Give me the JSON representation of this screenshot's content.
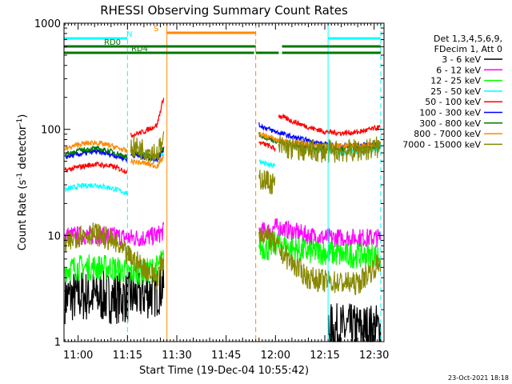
{
  "chart_data": {
    "type": "line",
    "title": "RHESSI Observing Summary Count Rates",
    "xlabel": "Start Time (19-Dec-04 10:55:42)",
    "ylabel": "Count Rate (s⁻¹ detector⁻¹)",
    "ylabel_parts": [
      "Count Rate (s",
      "-1",
      " detector",
      "-1",
      ")"
    ],
    "yscale": "log",
    "xlim": [
      "10:55:42",
      "12:33:00"
    ],
    "ylim": [
      1,
      1000
    ],
    "x_ticks": [
      "11:00",
      "11:15",
      "11:30",
      "11:45",
      "12:00",
      "12:15",
      "12:30"
    ],
    "y_ticks": [
      "1",
      "10",
      "100",
      "1000"
    ],
    "legend_header": [
      "Det 1,3,4,5,6,9,",
      "FDecim 1, Att 0"
    ],
    "legend_position": "right",
    "footer_date": "23-Oct-2021 18:18",
    "flag_bars": [
      {
        "label": "N",
        "color": "#00ffff",
        "segments": [
          [
            "10:55:42",
            "11:15:00"
          ],
          [
            "12:16:00",
            "12:32:00"
          ]
        ]
      },
      {
        "label": "S",
        "color": "#ff8800",
        "segments": [
          [
            "11:27:00",
            "11:54:00"
          ]
        ]
      },
      {
        "label": "RD0",
        "color": "#007700",
        "segments": [
          [
            "10:55:42",
            "11:54:00"
          ],
          [
            "12:02:00",
            "12:32:00"
          ]
        ]
      },
      {
        "label": "RD4",
        "color": "#007700",
        "segments": [
          [
            "10:55:42",
            "11:15:00"
          ],
          [
            "11:15:00",
            "11:53:30"
          ],
          [
            "11:54:00",
            "12:01:00"
          ],
          [
            "12:02:00",
            "12:32:00"
          ]
        ]
      }
    ],
    "vlines": [
      {
        "time": "10:55:42",
        "color": "#00ffff",
        "style": "solid"
      },
      {
        "time": "11:15:00",
        "color": "#00ffff",
        "style": "dashed"
      },
      {
        "time": "11:27:00",
        "color": "#ff8800",
        "style": "solid"
      },
      {
        "time": "11:54:00",
        "color": "#ff8800",
        "style": "dashed"
      },
      {
        "time": "12:16:00",
        "color": "#00ffff",
        "style": "solid"
      },
      {
        "time": "12:32:00",
        "color": "#00ffff",
        "style": "dashed"
      }
    ],
    "series": [
      {
        "name": "3 - 6 keV",
        "color": "#000000",
        "noise": 0.5,
        "segments": [
          [
            [
              "10:56",
              "2.6"
            ],
            [
              "11:00",
              "2.7"
            ],
            [
              "11:05",
              "2.7"
            ],
            [
              "11:10",
              "2.6"
            ],
            [
              "11:15",
              "2.6"
            ],
            [
              "11:20",
              "2.8"
            ],
            [
              "11:24",
              "3.0"
            ],
            [
              "11:26",
              "3.5"
            ]
          ],
          [
            [
              "12:16",
              "1.3"
            ],
            [
              "12:20",
              "1.3"
            ],
            [
              "12:25",
              "1.3"
            ],
            [
              "12:30",
              "1.3"
            ],
            [
              "12:32",
              "1.3"
            ]
          ]
        ]
      },
      {
        "name": "6 - 12 keV",
        "color": "#ff00ff",
        "noise": 0.18,
        "segments": [
          [
            [
              "10:56",
              "10"
            ],
            [
              "11:00",
              "10"
            ],
            [
              "11:05",
              "10"
            ],
            [
              "11:10",
              "10"
            ],
            [
              "11:15",
              "9.5"
            ],
            [
              "11:20",
              "9.5"
            ],
            [
              "11:24",
              "10"
            ],
            [
              "11:26",
              "11"
            ]
          ],
          [
            [
              "11:55",
              "11"
            ],
            [
              "11:58",
              "11"
            ],
            [
              "12:00",
              "12"
            ],
            [
              "12:05",
              "11"
            ],
            [
              "12:10",
              "10"
            ],
            [
              "12:15",
              "9.5"
            ],
            [
              "12:20",
              "9.5"
            ],
            [
              "12:25",
              "9.5"
            ],
            [
              "12:32",
              "9.5"
            ]
          ]
        ]
      },
      {
        "name": "12 - 25 keV",
        "color": "#00ff00",
        "noise": 0.25,
        "segments": [
          [
            [
              "10:56",
              "4.8"
            ],
            [
              "11:00",
              "5"
            ],
            [
              "11:05",
              "5"
            ],
            [
              "11:10",
              "5"
            ],
            [
              "11:15",
              "4.5"
            ],
            [
              "11:20",
              "4.5"
            ],
            [
              "11:24",
              "5"
            ],
            [
              "11:26",
              "6"
            ]
          ],
          [
            [
              "11:55",
              "8"
            ],
            [
              "11:58",
              "7.5"
            ],
            [
              "12:00",
              "8.5"
            ],
            [
              "12:05",
              "7.5"
            ],
            [
              "12:10",
              "7"
            ],
            [
              "12:15",
              "7"
            ],
            [
              "12:20",
              "6.5"
            ],
            [
              "12:25",
              "6.5"
            ],
            [
              "12:32",
              "6.5"
            ]
          ]
        ]
      },
      {
        "name": "25 - 50 keV",
        "color": "#00ffff",
        "noise": 0.05,
        "segments": [
          [
            [
              "10:56",
              "27"
            ],
            [
              "11:00",
              "29"
            ],
            [
              "11:05",
              "30"
            ],
            [
              "11:10",
              "28"
            ],
            [
              "11:15",
              "25"
            ]
          ],
          [
            [
              "11:16",
              "60"
            ],
            [
              "11:20",
              "57"
            ],
            [
              "11:24",
              "52"
            ],
            [
              "11:26",
              "60"
            ]
          ],
          [
            [
              "11:55",
              "50"
            ],
            [
              "11:58",
              "46"
            ],
            [
              "12:00",
              "45"
            ]
          ],
          [
            [
              "12:01",
              "80"
            ],
            [
              "12:05",
              "70"
            ],
            [
              "12:10",
              "65"
            ],
            [
              "12:15",
              "62"
            ],
            [
              "12:20",
              "60"
            ],
            [
              "12:25",
              "62"
            ],
            [
              "12:32",
              "65"
            ]
          ]
        ]
      },
      {
        "name": "50 - 100 keV",
        "color": "#ff0000",
        "noise": 0.05,
        "segments": [
          [
            [
              "10:56",
              "41"
            ],
            [
              "11:00",
              "44"
            ],
            [
              "11:05",
              "47"
            ],
            [
              "11:10",
              "45"
            ],
            [
              "11:15",
              "40"
            ]
          ],
          [
            [
              "11:16",
              "88"
            ],
            [
              "11:20",
              "95"
            ],
            [
              "11:24",
              "110"
            ],
            [
              "11:26",
              "200"
            ]
          ],
          [
            [
              "11:55",
              "75"
            ],
            [
              "11:58",
              "70"
            ],
            [
              "12:00",
              "65"
            ]
          ],
          [
            [
              "12:01",
              "135"
            ],
            [
              "12:05",
              "120"
            ],
            [
              "12:10",
              "105"
            ],
            [
              "12:15",
              "95"
            ],
            [
              "12:20",
              "92"
            ],
            [
              "12:25",
              "94"
            ],
            [
              "12:32",
              "105"
            ]
          ]
        ]
      },
      {
        "name": "100 - 300 keV",
        "color": "#0000ff",
        "noise": 0.05,
        "segments": [
          [
            [
              "10:56",
              "55"
            ],
            [
              "11:00",
              "58"
            ],
            [
              "11:05",
              "62"
            ],
            [
              "11:10",
              "58"
            ],
            [
              "11:15",
              "52"
            ]
          ],
          [
            [
              "11:16",
              "58"
            ],
            [
              "11:20",
              "55"
            ],
            [
              "11:24",
              "52"
            ],
            [
              "11:26",
              "65"
            ]
          ],
          [
            [
              "11:55",
              "110"
            ],
            [
              "11:58",
              "100"
            ],
            [
              "12:00",
              "95"
            ],
            [
              "12:05",
              "85"
            ],
            [
              "12:10",
              "78"
            ],
            [
              "12:15",
              "72"
            ],
            [
              "12:20",
              "70"
            ],
            [
              "12:25",
              "70"
            ],
            [
              "12:32",
              "72"
            ]
          ]
        ]
      },
      {
        "name": "300 - 800 keV",
        "color": "#007700",
        "noise": 0.05,
        "segments": [
          [
            [
              "10:56",
              "58"
            ],
            [
              "11:00",
              "63"
            ],
            [
              "11:05",
              "66"
            ],
            [
              "11:10",
              "62"
            ],
            [
              "11:15",
              "55"
            ]
          ],
          [
            [
              "11:16",
              "62"
            ],
            [
              "11:20",
              "58"
            ],
            [
              "11:24",
              "55"
            ],
            [
              "11:26",
              "68"
            ]
          ],
          [
            [
              "11:55",
              "90"
            ],
            [
              "11:58",
              "82"
            ],
            [
              "12:00",
              "78"
            ],
            [
              "12:05",
              "72"
            ],
            [
              "12:10",
              "68"
            ],
            [
              "12:15",
              "66"
            ],
            [
              "12:20",
              "66"
            ],
            [
              "12:25",
              "66"
            ],
            [
              "12:32",
              "70"
            ]
          ]
        ]
      },
      {
        "name": "800 - 7000 keV",
        "color": "#ff8800",
        "noise": 0.05,
        "segments": [
          [
            [
              "10:56",
              "65"
            ],
            [
              "11:00",
              "72"
            ],
            [
              "11:05",
              "75"
            ],
            [
              "11:10",
              "70"
            ],
            [
              "11:15",
              "62"
            ]
          ],
          [
            [
              "11:16",
              "50"
            ],
            [
              "11:20",
              "48"
            ],
            [
              "11:24",
              "45"
            ],
            [
              "11:26",
              "55"
            ]
          ],
          [
            [
              "11:55",
              "90"
            ],
            [
              "11:58",
              "85"
            ],
            [
              "12:00",
              "80"
            ],
            [
              "12:05",
              "75"
            ],
            [
              "12:10",
              "72"
            ],
            [
              "12:15",
              "70"
            ],
            [
              "12:20",
              "70"
            ],
            [
              "12:25",
              "70"
            ],
            [
              "12:32",
              "72"
            ]
          ]
        ]
      },
      {
        "name": "7000 - 15000 keV",
        "color": "#888800",
        "noise": 0.22,
        "segments": [
          [
            [
              "10:56",
              "8"
            ],
            [
              "11:00",
              "10"
            ],
            [
              "11:05",
              "10.5"
            ],
            [
              "11:10",
              "9"
            ],
            [
              "11:15",
              "6.5"
            ],
            [
              "11:20",
              "5"
            ],
            [
              "11:24",
              "4"
            ],
            [
              "11:26",
              "6"
            ]
          ],
          [
            [
              "11:16",
              "68"
            ],
            [
              "11:20",
              "65"
            ],
            [
              "11:24",
              "60"
            ],
            [
              "11:26",
              "75"
            ]
          ],
          [
            [
              "11:55",
              "35"
            ],
            [
              "11:58",
              "32"
            ],
            [
              "12:00",
              "30"
            ]
          ],
          [
            [
              "12:01",
              "70"
            ],
            [
              "12:05",
              "65"
            ],
            [
              "12:10",
              "63"
            ],
            [
              "12:15",
              "62"
            ],
            [
              "12:20",
              "62"
            ],
            [
              "12:25",
              "63"
            ],
            [
              "12:32",
              "68"
            ]
          ],
          [
            [
              "11:55",
              "11"
            ],
            [
              "11:58",
              "9.5"
            ],
            [
              "12:00",
              "8"
            ],
            [
              "12:05",
              "5.5"
            ],
            [
              "12:10",
              "4"
            ],
            [
              "12:15",
              "3.7"
            ],
            [
              "12:20",
              "3.6"
            ],
            [
              "12:25",
              "3.5"
            ],
            [
              "12:30",
              "5"
            ],
            [
              "12:32",
              "5.5"
            ]
          ]
        ]
      }
    ]
  }
}
